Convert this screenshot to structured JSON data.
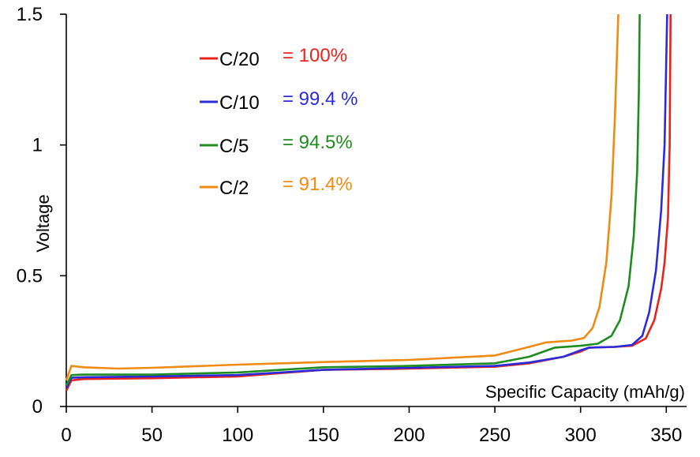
{
  "chart_data": {
    "type": "line",
    "xlabel": "Specific Capacity (mAh/g)",
    "ylabel": "Voltage",
    "xlim": [
      0,
      360
    ],
    "ylim": [
      0,
      1.5
    ],
    "x_ticks": [
      "0",
      "50",
      "100",
      "150",
      "200",
      "250",
      "300",
      "350"
    ],
    "x_tick_values": [
      0,
      50,
      100,
      150,
      200,
      250,
      300,
      350
    ],
    "y_ticks": [
      "0",
      "0.5",
      "1",
      "1.5"
    ],
    "y_tick_values": [
      0,
      0.5,
      1,
      1.5
    ],
    "legend_position": "top-left",
    "series": [
      {
        "name": "C/20",
        "value_label": "= 100%",
        "color": "#e8231c",
        "points": [
          [
            0,
            0.06
          ],
          [
            3,
            0.1
          ],
          [
            10,
            0.105
          ],
          [
            50,
            0.108
          ],
          [
            100,
            0.115
          ],
          [
            150,
            0.14
          ],
          [
            200,
            0.145
          ],
          [
            250,
            0.152
          ],
          [
            270,
            0.165
          ],
          [
            290,
            0.19
          ],
          [
            300,
            0.21
          ],
          [
            305,
            0.225
          ],
          [
            320,
            0.228
          ],
          [
            330,
            0.232
          ],
          [
            338,
            0.26
          ],
          [
            343,
            0.33
          ],
          [
            347,
            0.45
          ],
          [
            349,
            0.55
          ],
          [
            351,
            0.72
          ],
          [
            352,
            1.0
          ],
          [
            352.5,
            1.5
          ]
        ]
      },
      {
        "name": "C/10",
        "value_label": "= 99.4 %",
        "color": "#2b2bd9",
        "points": [
          [
            0,
            0.07
          ],
          [
            3,
            0.11
          ],
          [
            10,
            0.112
          ],
          [
            50,
            0.115
          ],
          [
            100,
            0.12
          ],
          [
            150,
            0.14
          ],
          [
            200,
            0.148
          ],
          [
            250,
            0.155
          ],
          [
            270,
            0.168
          ],
          [
            290,
            0.19
          ],
          [
            300,
            0.215
          ],
          [
            305,
            0.225
          ],
          [
            320,
            0.228
          ],
          [
            330,
            0.235
          ],
          [
            336,
            0.27
          ],
          [
            340,
            0.36
          ],
          [
            344,
            0.52
          ],
          [
            347,
            0.75
          ],
          [
            349,
            1.0
          ],
          [
            350.5,
            1.5
          ]
        ]
      },
      {
        "name": "C/5",
        "value_label": "= 94.5%",
        "color": "#1e8c1e",
        "points": [
          [
            0,
            0.08
          ],
          [
            3,
            0.12
          ],
          [
            10,
            0.122
          ],
          [
            50,
            0.122
          ],
          [
            100,
            0.13
          ],
          [
            150,
            0.15
          ],
          [
            200,
            0.155
          ],
          [
            250,
            0.165
          ],
          [
            270,
            0.19
          ],
          [
            285,
            0.225
          ],
          [
            300,
            0.232
          ],
          [
            310,
            0.24
          ],
          [
            318,
            0.27
          ],
          [
            323,
            0.33
          ],
          [
            328,
            0.46
          ],
          [
            331,
            0.65
          ],
          [
            333,
            0.9
          ],
          [
            334,
            1.2
          ],
          [
            334.5,
            1.5
          ]
        ]
      },
      {
        "name": "C/2",
        "value_label": "= 91.4%",
        "color": "#ef8a13",
        "points": [
          [
            0,
            0.1
          ],
          [
            3,
            0.155
          ],
          [
            10,
            0.15
          ],
          [
            30,
            0.145
          ],
          [
            50,
            0.148
          ],
          [
            100,
            0.16
          ],
          [
            150,
            0.17
          ],
          [
            200,
            0.178
          ],
          [
            250,
            0.195
          ],
          [
            270,
            0.228
          ],
          [
            280,
            0.245
          ],
          [
            295,
            0.252
          ],
          [
            302,
            0.262
          ],
          [
            307,
            0.3
          ],
          [
            311,
            0.38
          ],
          [
            315,
            0.55
          ],
          [
            318,
            0.8
          ],
          [
            320,
            1.1
          ],
          [
            321,
            1.3
          ],
          [
            322,
            1.5
          ]
        ]
      }
    ]
  }
}
